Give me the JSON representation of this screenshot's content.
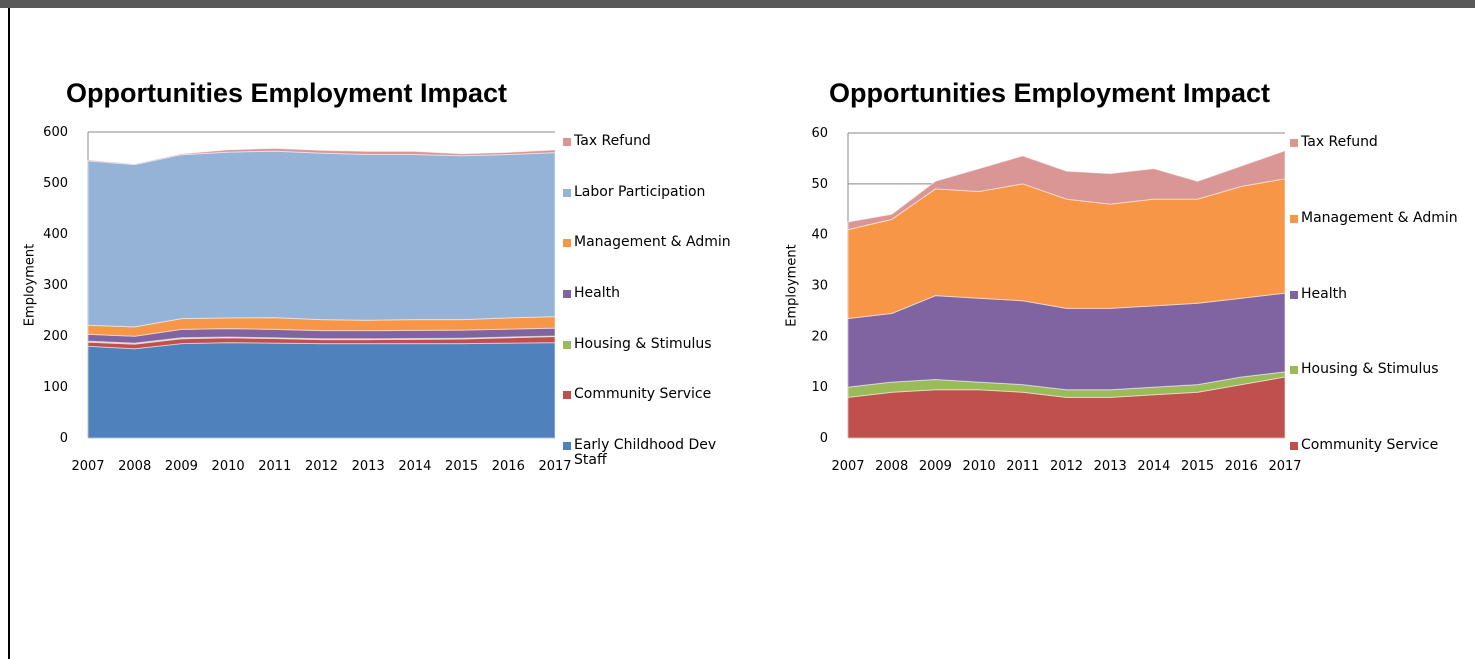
{
  "chart_data": [
    {
      "type": "stacked_area",
      "title": "Opportunities Employment Impact",
      "y_label": "Employment",
      "categories": [
        "2007",
        "2008",
        "2009",
        "2010",
        "2011",
        "2012",
        "2013",
        "2014",
        "2015",
        "2016",
        "2017"
      ],
      "ylim": [
        0,
        600
      ],
      "yticks": [
        0,
        100,
        200,
        300,
        400,
        500,
        600
      ],
      "grid": true,
      "series": [
        {
          "name": "Early Childhood Dev Staff",
          "color": "#4f81bd",
          "values": [
            180,
            175,
            185,
            187,
            186,
            185,
            185,
            185,
            185,
            186,
            187
          ]
        },
        {
          "name": "Community Service",
          "color": "#c0504d",
          "values": [
            8,
            9,
            9.5,
            9.5,
            9,
            8,
            8,
            8.5,
            9,
            10.5,
            12
          ]
        },
        {
          "name": "Housing & Stimulus",
          "color": "#9bbb59",
          "values": [
            2,
            2,
            2,
            1.5,
            1.5,
            1.5,
            1.5,
            1.5,
            1.5,
            1.5,
            1
          ]
        },
        {
          "name": "Health",
          "color": "#8064a2",
          "values": [
            13.5,
            13.5,
            16.5,
            16.5,
            16.5,
            16,
            16,
            16,
            16,
            15.5,
            15.5
          ]
        },
        {
          "name": "Management & Admin",
          "color": "#f79646",
          "values": [
            17.5,
            18.5,
            21,
            21,
            23,
            21.5,
            20.5,
            21,
            20.5,
            22,
            22.5
          ]
        },
        {
          "name": "Labor Participation",
          "color": "#95b3d7",
          "values": [
            322.5,
            318,
            321.5,
            325,
            326.5,
            326.5,
            325,
            324,
            321.5,
            320.5,
            321.5
          ]
        },
        {
          "name": "Tax Refund",
          "color": "#d99694",
          "values": [
            1.5,
            1,
            1.5,
            4.5,
            5.5,
            5.5,
            6,
            6,
            3.5,
            4,
            5.5
          ]
        }
      ]
    },
    {
      "type": "stacked_area",
      "title": "Opportunities Employment Impact",
      "y_label": "Employment",
      "categories": [
        "2007",
        "2008",
        "2009",
        "2010",
        "2011",
        "2012",
        "2013",
        "2014",
        "2015",
        "2016",
        "2017"
      ],
      "ylim": [
        0,
        60
      ],
      "yticks": [
        0,
        10,
        20,
        30,
        40,
        50,
        60
      ],
      "grid": true,
      "series": [
        {
          "name": "Community Service",
          "color": "#c0504d",
          "values": [
            8,
            9,
            9.5,
            9.5,
            9,
            8,
            8,
            8.5,
            9,
            10.5,
            12
          ]
        },
        {
          "name": "Housing & Stimulus",
          "color": "#9bbb59",
          "values": [
            2,
            2,
            2,
            1.5,
            1.5,
            1.5,
            1.5,
            1.5,
            1.5,
            1.5,
            1
          ]
        },
        {
          "name": "Health",
          "color": "#8064a2",
          "values": [
            13.5,
            13.5,
            16.5,
            16.5,
            16.5,
            16,
            16,
            16,
            16,
            15.5,
            15.5
          ]
        },
        {
          "name": "Management & Admin",
          "color": "#f79646",
          "values": [
            17.5,
            18.5,
            21,
            21,
            23,
            21.5,
            20.5,
            21,
            20.5,
            22,
            22.5
          ]
        },
        {
          "name": "Tax Refund",
          "color": "#d99694",
          "values": [
            1.5,
            1,
            1.5,
            4.5,
            5.5,
            5.5,
            6,
            6,
            3.5,
            4,
            5.5
          ]
        }
      ]
    }
  ]
}
